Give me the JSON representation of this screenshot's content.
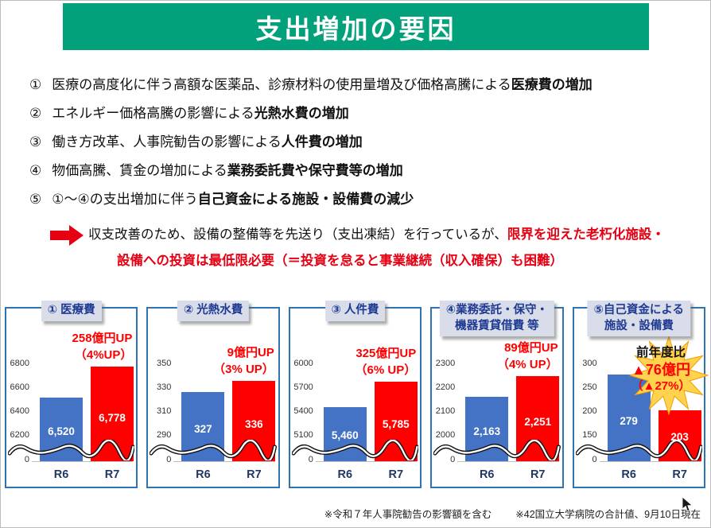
{
  "slide": {
    "title": "支出増加の要因",
    "footnotes": [
      "※令和７年人事院勧告の影響額を含む",
      "※42国立大学病院の合計値、9月10日現在"
    ]
  },
  "colors": {
    "banner_green": "#02A17C",
    "bar_blue": "#4472C4",
    "bar_red": "#FF0000",
    "chart_border_blue": "#2E74B5",
    "chart_title_blue": "#1F3A93",
    "annotation_red": "#FF0000",
    "note_arrow_red": "#E60012",
    "starburst_yellow": "#FFD34D",
    "starburst_edge": "#F59B00"
  },
  "factors": [
    {
      "num": "①",
      "plain": "医療の高度化に伴う高額な医薬品、診療材料の使用量増及び価格高騰による",
      "bold": "医療費の増加"
    },
    {
      "num": "②",
      "plain": "エネルギー価格高騰の影響による",
      "bold": "光熱水費の増加"
    },
    {
      "num": "③",
      "plain": "働き方改革、人事院勧告の影響による",
      "bold": "人件費の増加"
    },
    {
      "num": "④",
      "plain": "物価高騰、賃金の増加による",
      "bold": "業務委託費や保守費等の増加"
    },
    {
      "num": "⑤",
      "plain": "①～④の支出増加に伴う",
      "bold": "自己資金による施設・設備費の減少"
    }
  ],
  "note": {
    "line1_black": "収支改善のため、設備の整備等を先送り（支出凍結）を行っているが、",
    "line1_red": "限界を迎えた老朽化施設・",
    "line2_red": "設備への投資は最低限必要（＝投資を怠ると事業継続（収入確保）も困難）"
  },
  "chart_data": [
    {
      "type": "bar",
      "title": "① 医療費",
      "title_lines": [
        "① 医療費"
      ],
      "categories": [
        "R6",
        "R7"
      ],
      "values": [
        6520,
        6778
      ],
      "value_labels": [
        "6,520",
        "6,778"
      ],
      "yticks": [
        6800,
        6600,
        6400,
        6200
      ],
      "zero_tick": "0",
      "axis_break": true,
      "annotation": [
        "258億円UP",
        "（4%UP）"
      ]
    },
    {
      "type": "bar",
      "title": "② 光熱水費",
      "title_lines": [
        "② 光熱水費"
      ],
      "categories": [
        "R6",
        "R7"
      ],
      "values": [
        327,
        336
      ],
      "value_labels": [
        "327",
        "336"
      ],
      "yticks": [
        350,
        330,
        310,
        290
      ],
      "zero_tick": "0",
      "axis_break": true,
      "annotation": [
        "9億円UP",
        "（3% UP）"
      ]
    },
    {
      "type": "bar",
      "title": "③ 人件費",
      "title_lines": [
        "③ 人件費"
      ],
      "categories": [
        "R6",
        "R7"
      ],
      "values": [
        5460,
        5785
      ],
      "value_labels": [
        "5,460",
        "5,785"
      ],
      "yticks": [
        6000,
        5700,
        5400,
        5100
      ],
      "zero_tick": "0",
      "axis_break": true,
      "annotation": [
        "325億円UP",
        "（6% UP）"
      ]
    },
    {
      "type": "bar",
      "title": "④業務委託・保守・機器賃貸借費 等",
      "title_lines": [
        "④業務委託・保守・",
        "機器賃貸借費 等"
      ],
      "categories": [
        "R6",
        "R7"
      ],
      "values": [
        2163,
        2251
      ],
      "value_labels": [
        "2,163",
        "2,251"
      ],
      "yticks": [
        2300,
        2200,
        2100,
        2000
      ],
      "zero_tick": "0",
      "axis_break": true,
      "annotation": [
        "89億円UP",
        "（4% UP）"
      ]
    },
    {
      "type": "bar",
      "title": "⑤自己資金による施設・設備費",
      "title_lines": [
        "⑤自己資金による",
        "施設・設備費"
      ],
      "categories": [
        "R6",
        "R7"
      ],
      "values": [
        279,
        203
      ],
      "value_labels": [
        "279",
        "203"
      ],
      "yticks": [
        300,
        250,
        200,
        150
      ],
      "zero_tick": "0",
      "axis_break": true,
      "annotation_special": {
        "prefix": "前年度比",
        "lines": [
          "▲76億円",
          "（▲27%）"
        ],
        "starburst": true
      }
    }
  ]
}
